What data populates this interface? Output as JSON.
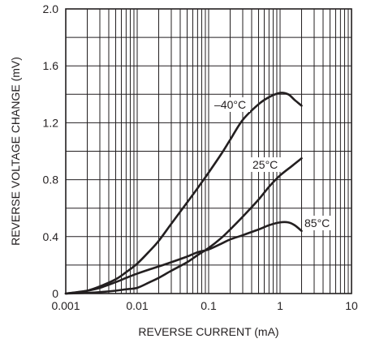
{
  "chart_data": {
    "type": "line",
    "title": "",
    "xlabel": "REVERSE CURRENT (mA)",
    "ylabel": "REVERSE VOLTAGE CHANGE (mV)",
    "x_scale": "log",
    "xlim": [
      0.001,
      10
    ],
    "ylim": [
      0,
      2.0
    ],
    "x_ticks": [
      0.001,
      0.01,
      0.1,
      1,
      10
    ],
    "x_tick_labels": [
      "0.001",
      "0.01",
      "0.1",
      "1",
      "10"
    ],
    "y_ticks": [
      0,
      0.4,
      0.8,
      1.2,
      1.6,
      2.0
    ],
    "y_tick_labels": [
      "0",
      "0.4",
      "0.8",
      "1.2",
      "1.6",
      "2.0"
    ],
    "grid": true,
    "legend": "none",
    "series": [
      {
        "name": "–40°C",
        "x": [
          0.001,
          0.0015,
          0.002,
          0.003,
          0.005,
          0.007,
          0.01,
          0.015,
          0.02,
          0.03,
          0.05,
          0.07,
          0.1,
          0.15,
          0.2,
          0.3,
          0.5,
          0.7,
          1.0,
          1.3,
          1.6,
          2.0
        ],
        "y": [
          0.0,
          0.01,
          0.02,
          0.05,
          0.1,
          0.15,
          0.21,
          0.3,
          0.37,
          0.49,
          0.64,
          0.74,
          0.85,
          0.98,
          1.08,
          1.22,
          1.33,
          1.38,
          1.41,
          1.4,
          1.36,
          1.32
        ]
      },
      {
        "name": "25°C",
        "x": [
          0.001,
          0.002,
          0.003,
          0.005,
          0.007,
          0.01,
          0.015,
          0.02,
          0.03,
          0.05,
          0.07,
          0.1,
          0.15,
          0.2,
          0.3,
          0.5,
          0.7,
          1.0,
          1.5,
          2.0
        ],
        "y": [
          0.0,
          0.005,
          0.01,
          0.02,
          0.03,
          0.04,
          0.08,
          0.11,
          0.16,
          0.22,
          0.27,
          0.32,
          0.39,
          0.45,
          0.54,
          0.66,
          0.75,
          0.83,
          0.9,
          0.95
        ]
      },
      {
        "name": "85°C",
        "x": [
          0.001,
          0.002,
          0.003,
          0.005,
          0.007,
          0.01,
          0.015,
          0.02,
          0.03,
          0.05,
          0.07,
          0.1,
          0.15,
          0.2,
          0.3,
          0.5,
          0.7,
          1.0,
          1.3,
          1.6,
          2.0
        ],
        "y": [
          0.0,
          0.02,
          0.04,
          0.08,
          0.11,
          0.14,
          0.17,
          0.19,
          0.22,
          0.26,
          0.29,
          0.31,
          0.35,
          0.38,
          0.41,
          0.45,
          0.48,
          0.5,
          0.5,
          0.48,
          0.44
        ]
      }
    ]
  }
}
